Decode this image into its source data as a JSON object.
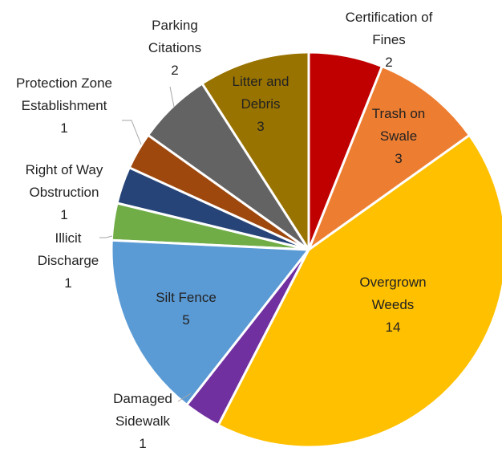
{
  "chart_data": {
    "type": "pie",
    "categories": [
      "Certification of Fines",
      "Trash on Swale",
      "Overgrown Weeds",
      "Damaged Sidewalk",
      "Silt Fence",
      "Illicit Discharge",
      "Right of Way Obstruction",
      "Protection Zone Establishment",
      "Parking Citations",
      "Litter and Debris"
    ],
    "values": [
      2,
      3,
      14,
      1,
      5,
      1,
      1,
      1,
      2,
      3
    ],
    "colors": [
      "#c00000",
      "#ed7d31",
      "#ffc000",
      "#7030a0",
      "#5b9bd5",
      "#70ad47",
      "#264478",
      "#9e480e",
      "#636363",
      "#997300"
    ]
  }
}
